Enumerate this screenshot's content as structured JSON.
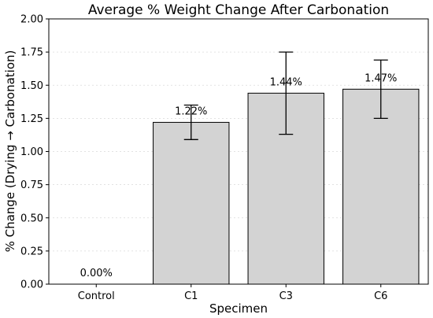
{
  "chart_data": {
    "type": "bar",
    "title": "Average % Weight Change After Carbonation",
    "xlabel": "Specimen",
    "ylabel": "% Change (Drying → Carbonation)",
    "categories": [
      "Control",
      "C1",
      "C3",
      "C6"
    ],
    "values": [
      0.0,
      1.22,
      1.44,
      1.47
    ],
    "error_low": [
      0.0,
      1.09,
      1.13,
      1.25
    ],
    "error_high": [
      0.0,
      1.35,
      1.75,
      1.69
    ],
    "data_labels": [
      "0.00%",
      "1.22%",
      "1.44%",
      "1.47%"
    ],
    "ylim": [
      0,
      2.0
    ],
    "yticks": [
      0,
      0.25,
      0.5,
      0.75,
      1.0,
      1.25,
      1.5,
      1.75,
      2.0
    ],
    "ytick_labels": [
      "0.00",
      "0.25",
      "0.50",
      "0.75",
      "1.00",
      "1.25",
      "1.50",
      "1.75",
      "2.00"
    ],
    "grid": "horizontal dotted",
    "bar_color": "#d3d3d3",
    "edge_color": "#000000",
    "grid_color": "#d9d9d9"
  }
}
